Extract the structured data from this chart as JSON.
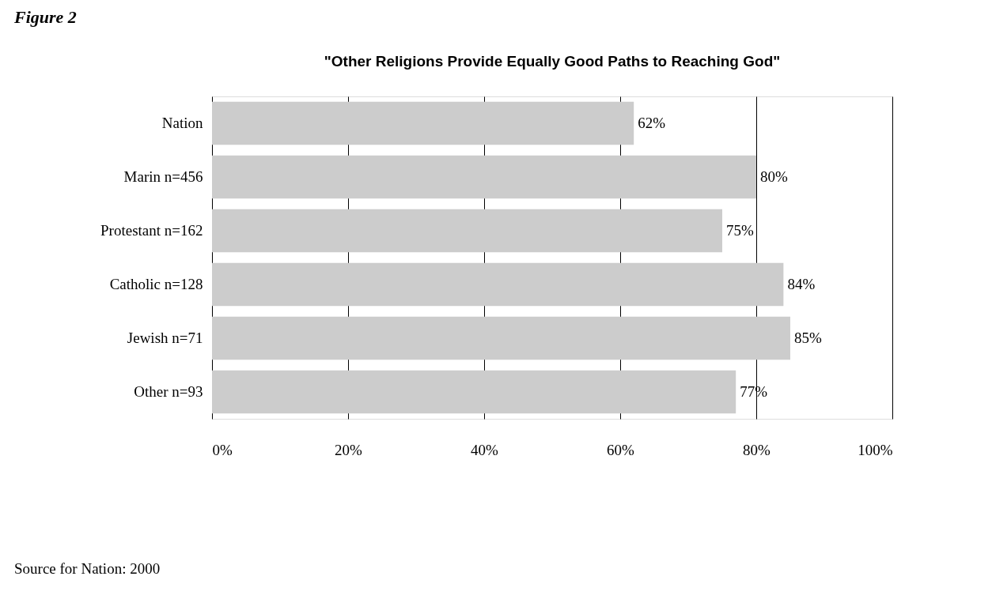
{
  "chart_data": {
    "type": "bar",
    "orientation": "horizontal",
    "title": "\"Other Religions Provide Equally Good Paths to Reaching God\"",
    "categories": [
      "Nation",
      "Marin n=456",
      "Protestant n=162",
      "Catholic n=128",
      "Jewish n=71",
      "Other n=93"
    ],
    "values": [
      62,
      80,
      75,
      84,
      85,
      77
    ],
    "value_labels": [
      "62%",
      "80%",
      "75%",
      "84%",
      "85%",
      "77%"
    ],
    "color": "#cccccc",
    "xlim": [
      0,
      100
    ],
    "xticks": [
      {
        "value": 0,
        "label": "0%"
      },
      {
        "value": 20,
        "label": "20%"
      },
      {
        "value": 40,
        "label": "40%"
      },
      {
        "value": 60,
        "label": "60%"
      },
      {
        "value": 80,
        "label": "80%"
      },
      {
        "value": 100,
        "label": "100%"
      }
    ],
    "grid": "x",
    "annotations": [
      "Figure 2",
      "Source for Nation: 2000"
    ]
  }
}
